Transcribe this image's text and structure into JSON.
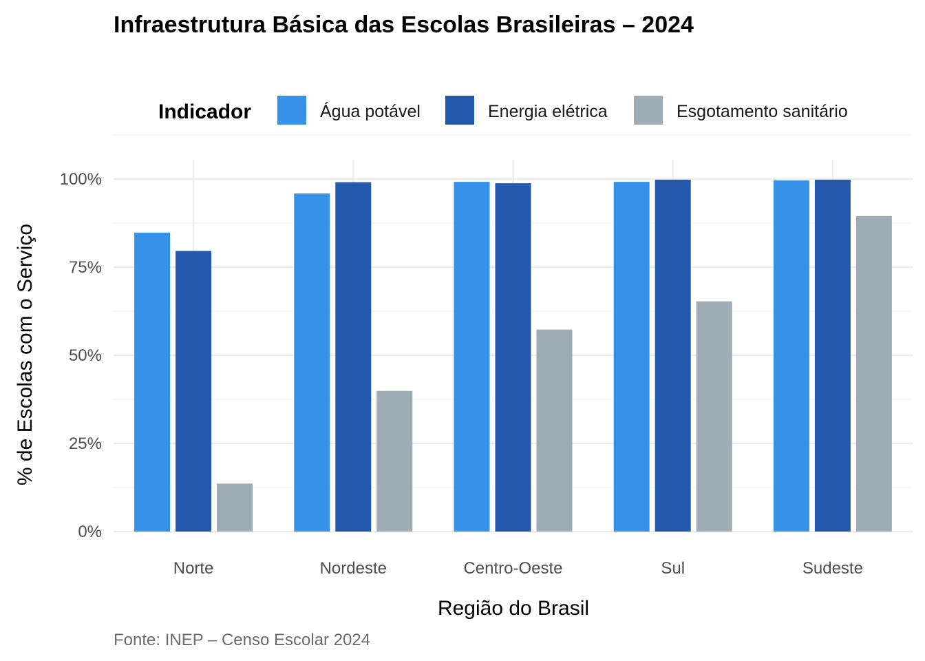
{
  "chart_data": {
    "type": "bar",
    "title": "Infraestrutura Básica das Escolas Brasileiras – 2024",
    "xlabel": "Região do Brasil",
    "ylabel": "% de Escolas com o Serviço",
    "caption": "Fonte: INEP – Censo Escolar 2024",
    "legend_title": "Indicador",
    "legend_position": "top",
    "categories": [
      "Norte",
      "Nordeste",
      "Centro-Oeste",
      "Sul",
      "Sudeste"
    ],
    "series": [
      {
        "name": "Água potável",
        "color": "#3592E8",
        "values": [
          84.8,
          95.9,
          99.2,
          99.2,
          99.6
        ]
      },
      {
        "name": "Energia elétrica",
        "color": "#2358AA",
        "values": [
          79.6,
          99.1,
          98.8,
          99.8,
          99.8
        ]
      },
      {
        "name": "Esgotamento sanitário",
        "color": "#9DACB5",
        "values": [
          13.6,
          39.9,
          57.3,
          65.3,
          89.5
        ]
      }
    ],
    "ylim": [
      0,
      100
    ],
    "yticks": [
      0,
      25,
      50,
      75,
      100
    ],
    "ytick_labels": [
      "0%",
      "25%",
      "50%",
      "75%",
      "100%"
    ],
    "grid": true
  }
}
